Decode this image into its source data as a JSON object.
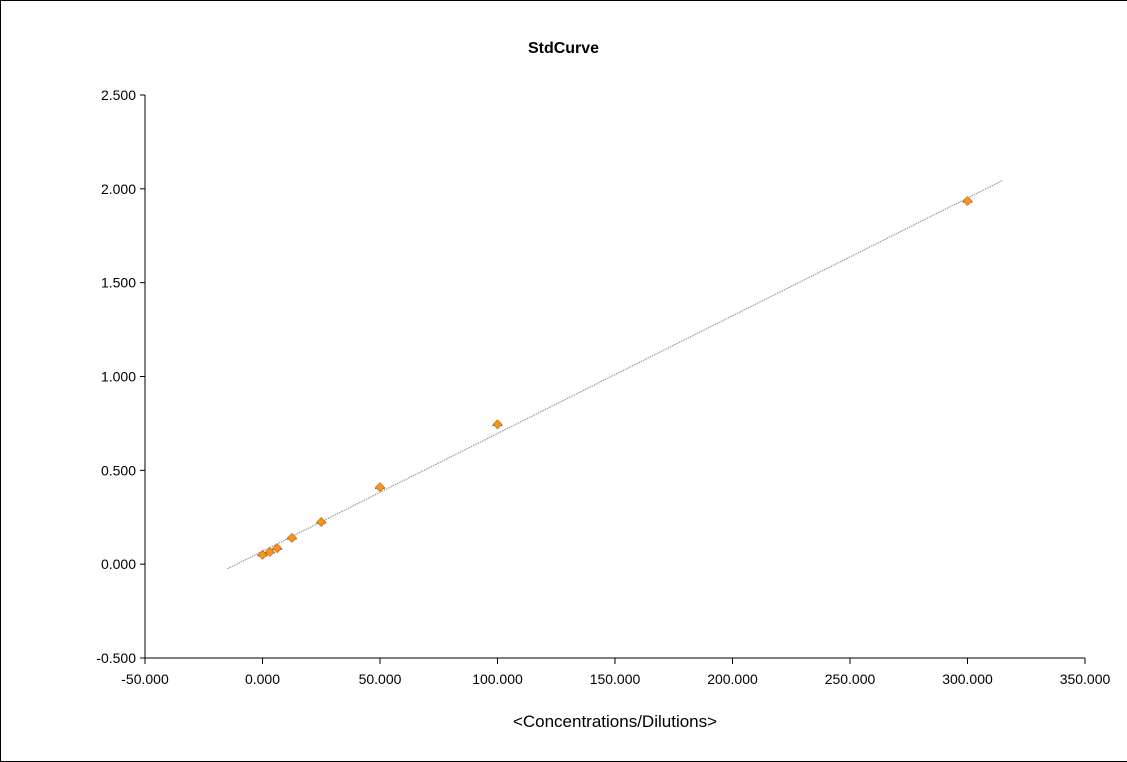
{
  "chart_data": {
    "type": "scatter",
    "title": "StdCurve",
    "xlabel": "<Concentrations/Dilutions>",
    "ylabel": "",
    "xlim": [
      -50,
      350
    ],
    "ylim": [
      -0.5,
      2.5
    ],
    "x_ticks": [
      "-50.000",
      "0.000",
      "50.000",
      "100.000",
      "150.000",
      "200.000",
      "250.000",
      "300.000",
      "350.000"
    ],
    "x_tick_values": [
      -50,
      0,
      50,
      100,
      150,
      200,
      250,
      300,
      350
    ],
    "y_ticks": [
      "-0.500",
      "0.000",
      "0.500",
      "1.000",
      "1.500",
      "2.000",
      "2.500"
    ],
    "y_tick_values": [
      -0.5,
      0,
      0.5,
      1,
      1.5,
      2,
      2.5
    ],
    "grid": false,
    "legend": "none",
    "marker_color": "#F7941D",
    "trendline_color": "#999999",
    "points": [
      {
        "x": 0,
        "y": 0.05
      },
      {
        "x": 3.125,
        "y": 0.065
      },
      {
        "x": 6.25,
        "y": 0.085
      },
      {
        "x": 12.5,
        "y": 0.14
      },
      {
        "x": 25,
        "y": 0.225
      },
      {
        "x": 50,
        "y": 0.41
      },
      {
        "x": 100,
        "y": 0.745
      },
      {
        "x": 300,
        "y": 1.935
      }
    ],
    "trendline": {
      "x_start": -15,
      "y_start": -0.025,
      "x_end": 315,
      "y_end": 2.045
    }
  }
}
